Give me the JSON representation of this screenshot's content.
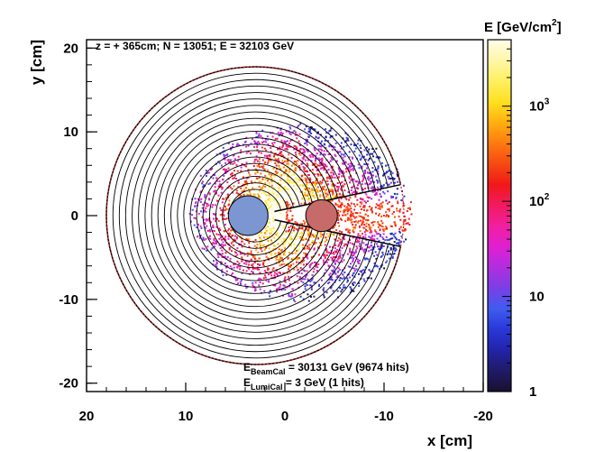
{
  "chart_data": {
    "type": "heatmap",
    "title": "z = + 365cm; N = 13051; E = 32103 GeV",
    "xlabel": "x [cm]",
    "ylabel": "y [cm]",
    "colorbar_label": "E [GeV/cm²]",
    "colorbar_label_main": "E [GeV/cm",
    "colorbar_label_sup": "2",
    "colorbar_label_close": "]",
    "colorbar_scale": "log",
    "colorbar_range": [
      1,
      5000
    ],
    "colorbar_ticks": [
      {
        "value": 1,
        "label": "1"
      },
      {
        "value": 10,
        "label": "10"
      },
      {
        "value": 100,
        "label": "10",
        "sup": "2"
      },
      {
        "value": 1000,
        "label": "10",
        "sup": "3"
      }
    ],
    "colorbar_stops": [
      "#1a1030",
      "#1f1b66",
      "#2323a8",
      "#2838d8",
      "#3f5cf0",
      "#7a3fe6",
      "#b02ee0",
      "#e01fd0",
      "#f11fa0",
      "#f21a60",
      "#f01818",
      "#f54a12",
      "#ff7a10",
      "#ffb010",
      "#ffe020",
      "#ffef60",
      "#fff6a8",
      "#fffde8"
    ],
    "xlim": [
      20,
      -20
    ],
    "ylim": [
      -21,
      21
    ],
    "x_axis_reversed": true,
    "x_ticks": [
      {
        "value": 20,
        "label": "20"
      },
      {
        "value": 10,
        "label": "10"
      },
      {
        "value": 0,
        "label": "0"
      },
      {
        "value": -10,
        "label": "-10"
      },
      {
        "value": -20,
        "label": "-20"
      }
    ],
    "y_ticks": [
      {
        "value": 20,
        "label": "20"
      },
      {
        "value": 10,
        "label": "10"
      },
      {
        "value": 0,
        "label": "0"
      },
      {
        "value": -10,
        "label": "-10"
      },
      {
        "value": -20,
        "label": "-20"
      }
    ],
    "detector": {
      "center": [
        3.0,
        0.0
      ],
      "outer_radius": 15.0,
      "inner_radius": 2.0,
      "n_rings": 20,
      "keyhole_half_angle_deg": 12,
      "lumi_circle_radius": 15.0,
      "lumi_circle_color": "#d42020",
      "ring_color": "#000000"
    },
    "beam_pipes": [
      {
        "name": "incoming",
        "x": 3.7,
        "y": 0.0,
        "r": 2.0,
        "color": "#7b96d0"
      },
      {
        "name": "outgoing",
        "x": -3.7,
        "y": 0.0,
        "r": 1.6,
        "color": "#c66a6a"
      }
    ],
    "hits_region": {
      "center": [
        -1.5,
        0.5
      ],
      "radial_range": [
        1.2,
        11.0
      ]
    },
    "annotations": [
      {
        "name": "E_BeamCal",
        "label_main": "E",
        "label_sub": "BeamCal",
        "text": " = 30131 GeV (9674 hits)"
      },
      {
        "name": "E_LumiCal",
        "label_main": "E",
        "label_sub": "LumiCal",
        "text": " = 3 GeV (1 hits)"
      }
    ]
  }
}
